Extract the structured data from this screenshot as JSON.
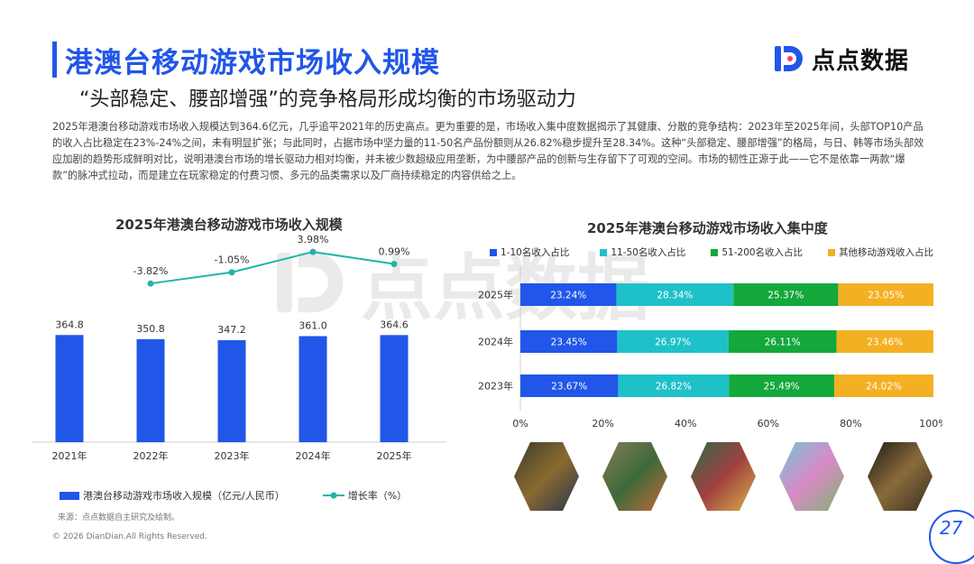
{
  "header": {
    "title": "港澳台移动游戏市场收入规模",
    "subtitle": "“头部稳定、腰部增强”的竞争格局形成均衡的市场驱动力",
    "logo_text": "点点数据"
  },
  "description": "2025年港澳台移动游戏市场收入规模达到364.6亿元，几乎追平2021年的历史高点。更为重要的是，市场收入集中度数据揭示了其健康、分散的竞争结构：2023年至2025年间，头部TOP10产品的收入占比稳定在23%-24%之间，未有明显扩张；与此同时，占据市场中坚力量的11-50名产品份额则从26.82%稳步提升至28.34%。这种“头部稳定、腰部增强”的格局，与日、韩等市场头部效应加剧的趋势形成鲜明对比，说明港澳台市场的增长驱动力相对均衡，并未被少数超级应用垄断，为中腰部产品的创新与生存留下了可观的空间。市场的韧性正源于此——它不是依靠一两款“爆款”的脉冲式拉动，而是建立在玩家稳定的付费习惯、多元的品类需求以及厂商持续稳定的内容供给之上。",
  "footer": {
    "source": "来源：点点数据自主研究及绘制。",
    "copyright": "© 2026 DianDian.All Rights Reserved.",
    "page": "27"
  },
  "colors": {
    "accent": "#2156e8",
    "bar": "#2156e8",
    "line": "#1fb5a8",
    "seg1": "#2156e8",
    "seg2": "#1fc1c8",
    "seg3": "#14a83c",
    "seg4": "#f4b023"
  },
  "chart_data": [
    {
      "type": "bar",
      "title": "2025年港澳台移动游戏市场收入规模",
      "categories": [
        "2021年",
        "2022年",
        "2023年",
        "2024年",
        "2025年"
      ],
      "series": [
        {
          "name": "港澳台移动游戏市场收入规模（亿元/人民币）",
          "type": "bar",
          "values": [
            364.8,
            350.8,
            347.2,
            361.0,
            364.6
          ],
          "labels": [
            "364.8",
            "350.8",
            "347.2",
            "361.0",
            "364.6"
          ]
        },
        {
          "name": "增长率（%）",
          "type": "line",
          "values": [
            null,
            -3.82,
            -1.05,
            3.98,
            0.99
          ],
          "labels": [
            "",
            "-3.82%",
            "-1.05%",
            "3.98%",
            "0.99%"
          ]
        }
      ]
    },
    {
      "type": "bar",
      "stacked": true,
      "orientation": "horizontal",
      "percent": true,
      "title": "2025年港澳台移动游戏市场收入集中度",
      "categories": [
        "2025年",
        "2024年",
        "2023年"
      ],
      "series": [
        {
          "name": "1-10名收入占比",
          "values": [
            23.24,
            23.45,
            23.67
          ]
        },
        {
          "name": "11-50名收入占比",
          "values": [
            28.34,
            26.97,
            26.82
          ]
        },
        {
          "name": "51-200名收入占比",
          "values": [
            25.37,
            26.11,
            25.49
          ]
        },
        {
          "name": "其他移动游戏收入占比",
          "values": [
            23.05,
            23.46,
            24.02
          ]
        }
      ],
      "xticks": [
        "0%",
        "20%",
        "40%",
        "60%",
        "80%",
        "100%"
      ],
      "xlim": [
        0,
        100
      ],
      "legend": "top"
    }
  ]
}
